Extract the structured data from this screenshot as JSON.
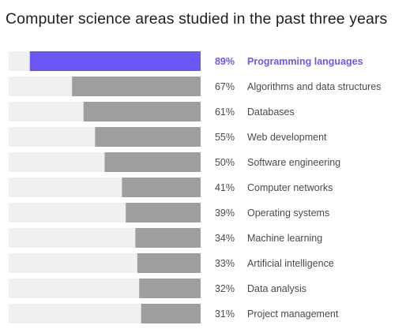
{
  "chart_data": {
    "type": "bar",
    "orientation": "horizontal",
    "title": "Computer science areas studied in the past three years",
    "xlim": [
      0,
      100
    ],
    "grid": false,
    "highlight_index": 0,
    "categories": [
      "Programming languages",
      "Algorithms and data structures",
      "Databases",
      "Web development",
      "Software engineering",
      "Computer networks",
      "Operating systems",
      "Machine learning",
      "Artificial intelligence",
      "Data analysis",
      "Project management"
    ],
    "values": [
      89,
      67,
      61,
      55,
      50,
      41,
      39,
      34,
      33,
      32,
      31
    ],
    "value_labels": [
      "89%",
      "67%",
      "61%",
      "55%",
      "50%",
      "41%",
      "39%",
      "34%",
      "33%",
      "32%",
      "31%"
    ]
  },
  "colors": {
    "track": "#f0f0f0",
    "bar": "#9e9e9e",
    "highlight_bar": "#6b57f5",
    "text": "#4a4a4a",
    "highlight_text": "#6b57f5"
  }
}
